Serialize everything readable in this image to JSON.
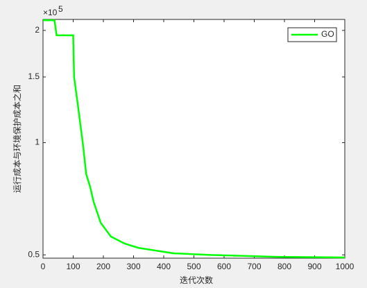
{
  "chart_data": {
    "type": "line",
    "log_y": true,
    "xlabel": "迭代次数",
    "ylabel": "运行成本与环境保护成本之和",
    "y_exponent": "×10",
    "y_exponent_power": "5",
    "x": [
      0,
      38,
      45,
      100,
      103,
      115,
      133,
      143,
      156,
      168,
      191,
      225,
      271,
      317,
      432,
      547,
      777,
      1000
    ],
    "series": [
      {
        "name": "GO",
        "color": "#00ff00",
        "values": [
          213000,
          213000,
          194000,
          194000,
          150000,
          127000,
          98000,
          82400,
          76200,
          69300,
          61000,
          56000,
          53600,
          52200,
          50500,
          50000,
          49400,
          49200
        ]
      }
    ],
    "xlim": [
      0,
      1000
    ],
    "xticks": [
      0,
      100,
      200,
      300,
      400,
      500,
      600,
      700,
      800,
      900,
      1000
    ],
    "ylim": [
      49000,
      214000
    ],
    "yticks": [
      {
        "value": 50000,
        "label": "0.5"
      },
      {
        "value": 100000,
        "label": "1"
      },
      {
        "value": 150000,
        "label": "1.5"
      },
      {
        "value": 200000,
        "label": "2"
      }
    ],
    "legend": "top-right"
  }
}
